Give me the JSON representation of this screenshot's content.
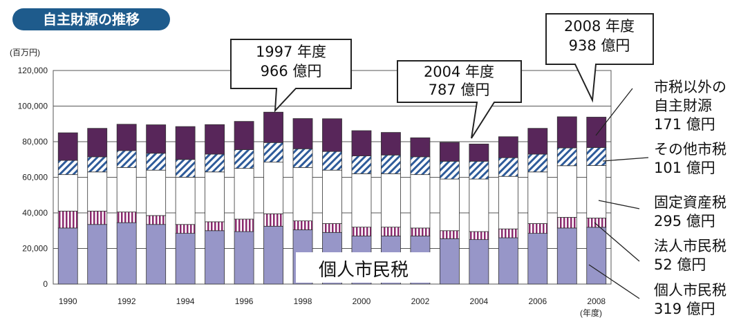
{
  "title_badge": "自主財源の推移",
  "unit_label": "(百万円)",
  "chart_data": {
    "type": "bar",
    "stacked": true,
    "categories": [
      "1990",
      "1991",
      "1992",
      "1993",
      "1994",
      "1995",
      "1996",
      "1997",
      "1998",
      "1999",
      "2000",
      "2001",
      "2002",
      "2003",
      "2004",
      "2005",
      "2006",
      "2007",
      "2008"
    ],
    "x_tick_labels": [
      "1990",
      "1992",
      "1994",
      "1996",
      "1998",
      "2000",
      "2002",
      "2004",
      "2006",
      "2008"
    ],
    "xlabel": "(年度)",
    "ylim": [
      0,
      120000
    ],
    "y_ticks": [
      "0",
      "20,000",
      "40,000",
      "60,000",
      "80,000",
      "100,000",
      "120,000"
    ],
    "y_tick_values": [
      0,
      20000,
      40000,
      60000,
      80000,
      100000,
      120000
    ],
    "grid": true,
    "series": [
      {
        "key": "kojin",
        "color": "#9796c8",
        "pattern": "solid",
        "values": [
          31500,
          33500,
          34500,
          33500,
          28500,
          30000,
          29500,
          32500,
          30500,
          29000,
          27000,
          27000,
          27000,
          25500,
          25000,
          26000,
          28500,
          31500,
          31900
        ]
      },
      {
        "key": "hojin",
        "color": "#8b2a6e",
        "pattern": "vertical-stripes",
        "values": [
          9500,
          7500,
          6000,
          5000,
          5000,
          5000,
          7000,
          7000,
          5000,
          5000,
          5000,
          5000,
          4500,
          4500,
          4500,
          5000,
          5500,
          6000,
          5200
        ]
      },
      {
        "key": "kotei",
        "color": "#ffffff",
        "pattern": "solid",
        "values": [
          20500,
          22000,
          25000,
          25500,
          26500,
          28000,
          28500,
          29000,
          30000,
          30000,
          30000,
          30000,
          30000,
          29000,
          29500,
          29500,
          29000,
          29000,
          29500
        ]
      },
      {
        "key": "sonota",
        "color": "#2e5b9a",
        "pattern": "diagonal-stripes",
        "values": [
          8000,
          8500,
          9500,
          9500,
          10000,
          10000,
          10500,
          11000,
          10500,
          10500,
          10000,
          10500,
          10000,
          10000,
          10000,
          10500,
          10000,
          10000,
          10100
        ]
      },
      {
        "key": "igai",
        "color": "#58265a",
        "pattern": "solid",
        "values": [
          15500,
          16000,
          14800,
          16000,
          18500,
          16600,
          15900,
          17100,
          17000,
          18400,
          14200,
          12700,
          10700,
          10600,
          9700,
          11800,
          14500,
          17500,
          17100
        ]
      }
    ]
  },
  "callouts": [
    {
      "lines": [
        "1997 年度",
        "966 億円"
      ]
    },
    {
      "lines": [
        "2004 年度",
        "787 億円"
      ]
    },
    {
      "lines": [
        "2008 年度",
        "938 億円"
      ]
    }
  ],
  "series_labels": [
    {
      "lines": [
        "市税以外の",
        "自主財源",
        "171 億円"
      ]
    },
    {
      "lines": [
        "その他市税",
        "101 億円"
      ]
    },
    {
      "lines": [
        "固定資産税",
        "295 億円"
      ]
    },
    {
      "lines": [
        "法人市民税",
        "52 億円"
      ]
    },
    {
      "lines": [
        "個人市民税",
        "319 億円"
      ]
    }
  ],
  "inplot_label": "個人市民税"
}
